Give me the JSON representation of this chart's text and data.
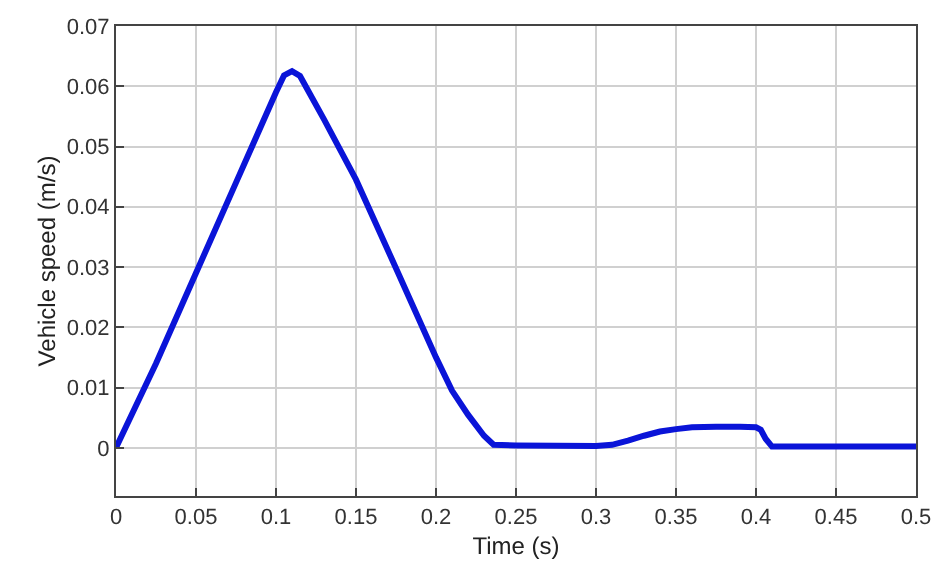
{
  "chart_data": {
    "type": "line",
    "xlabel": "Time (s)",
    "ylabel": "Vehicle speed (m/s)",
    "x": [
      0,
      0.025,
      0.05,
      0.075,
      0.1,
      0.105,
      0.11,
      0.115,
      0.13,
      0.15,
      0.175,
      0.2,
      0.21,
      0.22,
      0.23,
      0.236,
      0.25,
      0.3,
      0.31,
      0.32,
      0.33,
      0.34,
      0.35,
      0.36,
      0.375,
      0.39,
      0.4,
      0.403,
      0.406,
      0.41,
      0.42,
      0.5
    ],
    "series": [
      {
        "color": "#0a14d8",
        "values": [
          0,
          0.014,
          0.029,
          0.044,
          0.059,
          0.0618,
          0.0625,
          0.0617,
          0.0545,
          0.0445,
          0.0298,
          0.015,
          0.0095,
          0.0055,
          0.002,
          0.0005,
          0.0004,
          0.0003,
          0.0005,
          0.0012,
          0.002,
          0.0027,
          0.0031,
          0.0034,
          0.0035,
          0.0035,
          0.0034,
          0.003,
          0.0015,
          0.0002,
          0.0002,
          0.0002
        ]
      }
    ],
    "xlim": [
      0,
      0.5
    ],
    "xticks": [
      0,
      0.05,
      0.1,
      0.15,
      0.2,
      0.25,
      0.3,
      0.35,
      0.4,
      0.45,
      0.5
    ],
    "ylim": [
      -0.008,
      0.07
    ],
    "yticks": [
      0,
      0.01,
      0.02,
      0.03,
      0.04,
      0.05,
      0.06,
      0.07
    ],
    "grid": true,
    "marker": "none",
    "line_style": "solid"
  }
}
